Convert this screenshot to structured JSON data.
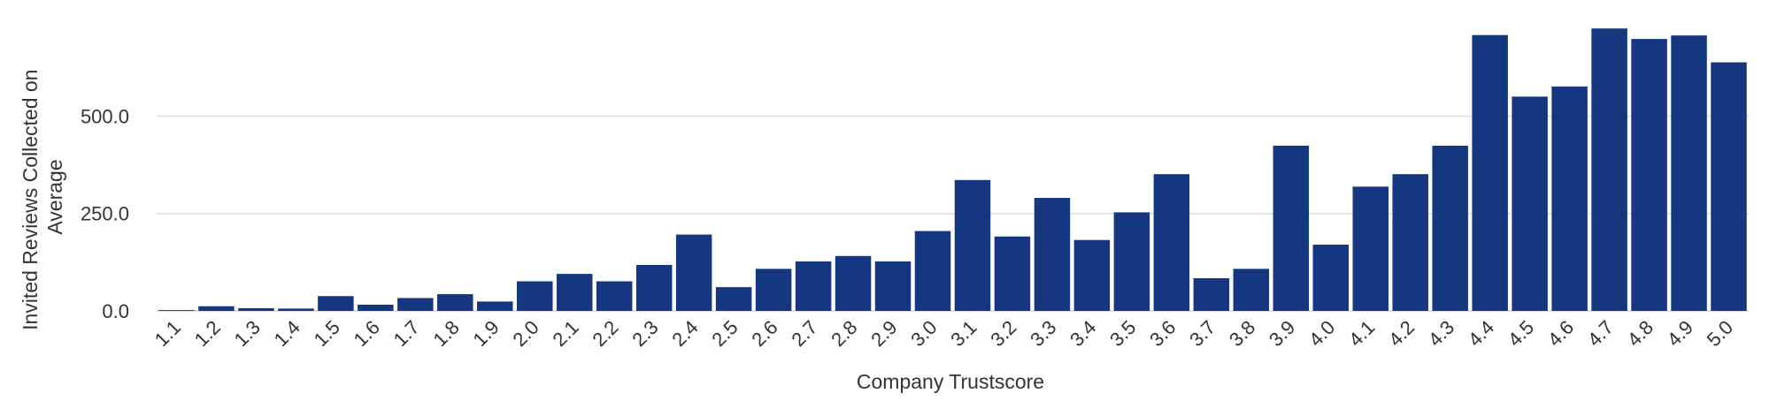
{
  "chart_data": {
    "type": "bar",
    "xlabel": "Company Trustscore",
    "ylabel_lines": [
      "Invited Reviews Collected on",
      "Average"
    ],
    "categories": [
      "1.1",
      "1.2",
      "1.3",
      "1.4",
      "1.5",
      "1.6",
      "1.7",
      "1.8",
      "1.9",
      "2.0",
      "2.1",
      "2.2",
      "2.3",
      "2.4",
      "2.5",
      "2.6",
      "2.7",
      "2.8",
      "2.9",
      "3.0",
      "3.1",
      "3.2",
      "3.3",
      "3.4",
      "3.5",
      "3.6",
      "3.7",
      "3.8",
      "3.9",
      "4.0",
      "4.1",
      "4.2",
      "4.3",
      "4.4",
      "4.5",
      "4.6",
      "4.7",
      "4.8",
      "4.9",
      "5.0"
    ],
    "values": [
      2,
      12,
      7,
      6,
      38,
      16,
      33,
      43,
      24,
      76,
      95,
      76,
      118,
      196,
      61,
      108,
      127,
      141,
      127,
      205,
      336,
      191,
      290,
      182,
      253,
      351,
      84,
      108,
      424,
      170,
      319,
      351,
      424,
      708,
      550,
      576,
      725,
      698,
      707,
      638
    ],
    "yticks": [
      "0.0",
      "250.0",
      "500.0"
    ],
    "ytick_values": [
      0,
      250,
      500
    ],
    "ylim": [
      0,
      730
    ],
    "grid": true,
    "bar_color": "#15377f"
  }
}
